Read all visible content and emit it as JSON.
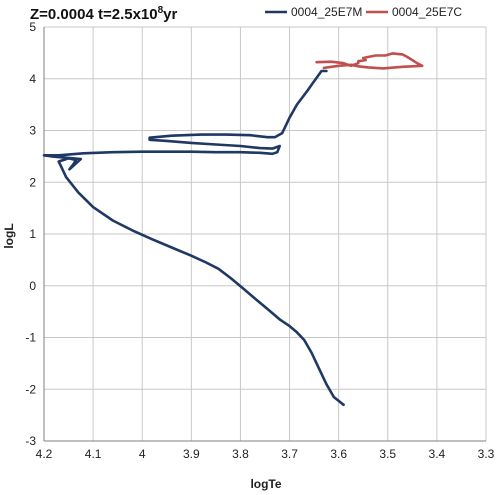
{
  "chart_data": {
    "type": "line",
    "title": "Z=0.0004 t=2.5x10",
    "title_superscript": "8",
    "title_suffix": "yr",
    "xlabel": "logTe",
    "ylabel": "logL",
    "xlim": [
      4.2,
      3.3
    ],
    "ylim": [
      -3,
      5
    ],
    "x_reversed": true,
    "grid": true,
    "legend_position": "top-right",
    "x_ticks": [
      "4.2",
      "4.1",
      "4",
      "3.9",
      "3.8",
      "3.7",
      "3.6",
      "3.5",
      "3.4",
      "3.3"
    ],
    "y_ticks": [
      "-3",
      "-2",
      "-1",
      "0",
      "1",
      "2",
      "3",
      "4",
      "5"
    ],
    "series": [
      {
        "name": "0004_25E7M",
        "color": "#1f3864",
        "points": [
          [
            3.59,
            -2.3
          ],
          [
            3.61,
            -2.15
          ],
          [
            3.625,
            -1.9
          ],
          [
            3.64,
            -1.6
          ],
          [
            3.655,
            -1.3
          ],
          [
            3.67,
            -1.05
          ],
          [
            3.685,
            -0.9
          ],
          [
            3.7,
            -0.78
          ],
          [
            3.72,
            -0.65
          ],
          [
            3.745,
            -0.45
          ],
          [
            3.77,
            -0.25
          ],
          [
            3.795,
            -0.05
          ],
          [
            3.82,
            0.15
          ],
          [
            3.845,
            0.33
          ],
          [
            3.87,
            0.45
          ],
          [
            3.9,
            0.58
          ],
          [
            3.94,
            0.74
          ],
          [
            3.98,
            0.9
          ],
          [
            4.02,
            1.07
          ],
          [
            4.06,
            1.26
          ],
          [
            4.1,
            1.52
          ],
          [
            4.13,
            1.8
          ],
          [
            4.155,
            2.1
          ],
          [
            4.165,
            2.3
          ],
          [
            4.17,
            2.4
          ],
          [
            4.15,
            2.46
          ],
          [
            4.135,
            2.43
          ],
          [
            4.14,
            2.35
          ],
          [
            4.148,
            2.25
          ],
          [
            4.14,
            2.32
          ],
          [
            4.125,
            2.45
          ],
          [
            4.15,
            2.47
          ],
          [
            4.185,
            2.5
          ],
          [
            4.2,
            2.52
          ],
          [
            4.17,
            2.52
          ],
          [
            4.12,
            2.56
          ],
          [
            4.06,
            2.58
          ],
          [
            4.0,
            2.59
          ],
          [
            3.95,
            2.59
          ],
          [
            3.9,
            2.59
          ],
          [
            3.85,
            2.58
          ],
          [
            3.8,
            2.58
          ],
          [
            3.76,
            2.57
          ],
          [
            3.735,
            2.55
          ],
          [
            3.725,
            2.58
          ],
          [
            3.72,
            2.7
          ],
          [
            3.735,
            2.65
          ],
          [
            3.76,
            2.66
          ],
          [
            3.8,
            2.7
          ],
          [
            3.85,
            2.73
          ],
          [
            3.9,
            2.76
          ],
          [
            3.95,
            2.8
          ],
          [
            3.985,
            2.82
          ],
          [
            3.985,
            2.86
          ],
          [
            3.94,
            2.9
          ],
          [
            3.88,
            2.92
          ],
          [
            3.83,
            2.92
          ],
          [
            3.78,
            2.91
          ],
          [
            3.745,
            2.87
          ],
          [
            3.73,
            2.87
          ],
          [
            3.715,
            2.95
          ],
          [
            3.7,
            3.25
          ],
          [
            3.685,
            3.5
          ],
          [
            3.665,
            3.75
          ],
          [
            3.65,
            3.95
          ],
          [
            3.635,
            4.15
          ],
          [
            3.625,
            4.15
          ]
        ]
      },
      {
        "name": "0004_25E7C",
        "color": "#c0504d",
        "points": [
          [
            3.645,
            4.32
          ],
          [
            3.615,
            4.33
          ],
          [
            3.59,
            4.3
          ],
          [
            3.575,
            4.25
          ],
          [
            3.56,
            4.3
          ],
          [
            3.56,
            4.34
          ],
          [
            3.545,
            4.36
          ],
          [
            3.55,
            4.4
          ],
          [
            3.525,
            4.45
          ],
          [
            3.505,
            4.45
          ],
          [
            3.49,
            4.49
          ],
          [
            3.47,
            4.47
          ],
          [
            3.46,
            4.42
          ],
          [
            3.44,
            4.3
          ],
          [
            3.43,
            4.25
          ],
          [
            3.47,
            4.23
          ],
          [
            3.51,
            4.2
          ],
          [
            3.54,
            4.22
          ],
          [
            3.56,
            4.24
          ],
          [
            3.575,
            4.27
          ],
          [
            3.6,
            4.25
          ],
          [
            3.63,
            4.21
          ]
        ]
      }
    ]
  }
}
